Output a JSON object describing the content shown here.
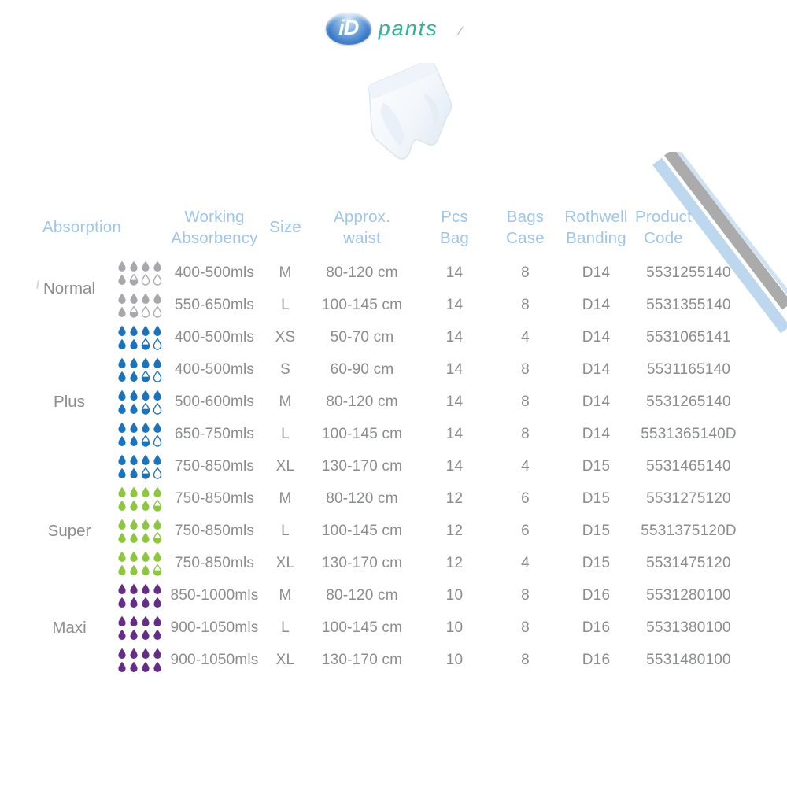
{
  "logo": {
    "id": "iD",
    "name": "pants",
    "mark": "/"
  },
  "colors": {
    "header_text": "#9fc5e8",
    "body_text": "#8a8c8e",
    "swoosh_gray": "#ababab",
    "swoosh_blue": "#bdd7ee",
    "droplet_gray": "#a6a8ab",
    "droplet_blue": "#1b73b9",
    "droplet_green": "#8dc63f",
    "droplet_purple": "#662d86"
  },
  "table": {
    "headers": {
      "absorption": "Absorption",
      "working_absorbency": "Working\nAbsorbency",
      "size": "Size",
      "waist": "Approx.\nwaist",
      "pcs_bag": "Pcs\nBag",
      "bags_case": "Bags\nCase",
      "banding": "Rothwell\nBanding",
      "code": "Product\nCode"
    },
    "groups": [
      {
        "label": "Normal",
        "droplet_color": "#a6a8ab",
        "droplet_pattern": [
          "full",
          "full",
          "full",
          "full",
          "full",
          "half",
          "empty",
          "empty"
        ],
        "rows": [
          {
            "absorbency": "400-500mls",
            "size": "M",
            "waist": "80-120 cm",
            "pcs_bag": "14",
            "bags_case": "8",
            "banding": "D14",
            "code": "5531255140"
          },
          {
            "absorbency": "550-650mls",
            "size": "L",
            "waist": "100-145 cm",
            "pcs_bag": "14",
            "bags_case": "8",
            "banding": "D14",
            "code": "5531355140"
          }
        ]
      },
      {
        "label": "Plus",
        "droplet_color": "#1b73b9",
        "droplet_pattern": [
          "full",
          "full",
          "full",
          "full",
          "full",
          "full",
          "half",
          "empty"
        ],
        "rows": [
          {
            "absorbency": "400-500mls",
            "size": "XS",
            "waist": "50-70 cm",
            "pcs_bag": "14",
            "bags_case": "4",
            "banding": "D14",
            "code": "5531065141"
          },
          {
            "absorbency": "400-500mls",
            "size": "S",
            "waist": "60-90 cm",
            "pcs_bag": "14",
            "bags_case": "8",
            "banding": "D14",
            "code": "5531165140"
          },
          {
            "absorbency": "500-600mls",
            "size": "M",
            "waist": "80-120 cm",
            "pcs_bag": "14",
            "bags_case": "8",
            "banding": "D14",
            "code": "5531265140"
          },
          {
            "absorbency": "650-750mls",
            "size": "L",
            "waist": "100-145 cm",
            "pcs_bag": "14",
            "bags_case": "8",
            "banding": "D14",
            "code": "5531365140D"
          },
          {
            "absorbency": "750-850mls",
            "size": "XL",
            "waist": "130-170 cm",
            "pcs_bag": "14",
            "bags_case": "4",
            "banding": "D15",
            "code": "5531465140"
          }
        ]
      },
      {
        "label": "Super",
        "droplet_color": "#8dc63f",
        "droplet_pattern": [
          "full",
          "full",
          "full",
          "full",
          "full",
          "full",
          "full",
          "half"
        ],
        "rows": [
          {
            "absorbency": "750-850mls",
            "size": "M",
            "waist": "80-120 cm",
            "pcs_bag": "12",
            "bags_case": "6",
            "banding": "D15",
            "code": "5531275120"
          },
          {
            "absorbency": "750-850mls",
            "size": "L",
            "waist": "100-145 cm",
            "pcs_bag": "12",
            "bags_case": "6",
            "banding": "D15",
            "code": "5531375120D"
          },
          {
            "absorbency": "750-850mls",
            "size": "XL",
            "waist": "130-170 cm",
            "pcs_bag": "12",
            "bags_case": "4",
            "banding": "D15",
            "code": "5531475120"
          }
        ]
      },
      {
        "label": "Maxi",
        "droplet_color": "#662d86",
        "droplet_pattern": [
          "full",
          "full",
          "full",
          "full",
          "full",
          "full",
          "full",
          "full"
        ],
        "rows": [
          {
            "absorbency": "850-1000mls",
            "size": "M",
            "waist": "80-120 cm",
            "pcs_bag": "10",
            "bags_case": "8",
            "banding": "D16",
            "code": "5531280100"
          },
          {
            "absorbency": "900-1050mls",
            "size": "L",
            "waist": "100-145 cm",
            "pcs_bag": "10",
            "bags_case": "8",
            "banding": "D16",
            "code": "5531380100"
          },
          {
            "absorbency": "900-1050mls",
            "size": "XL",
            "waist": "130-170 cm",
            "pcs_bag": "10",
            "bags_case": "8",
            "banding": "D16",
            "code": "5531480100"
          }
        ]
      }
    ]
  }
}
